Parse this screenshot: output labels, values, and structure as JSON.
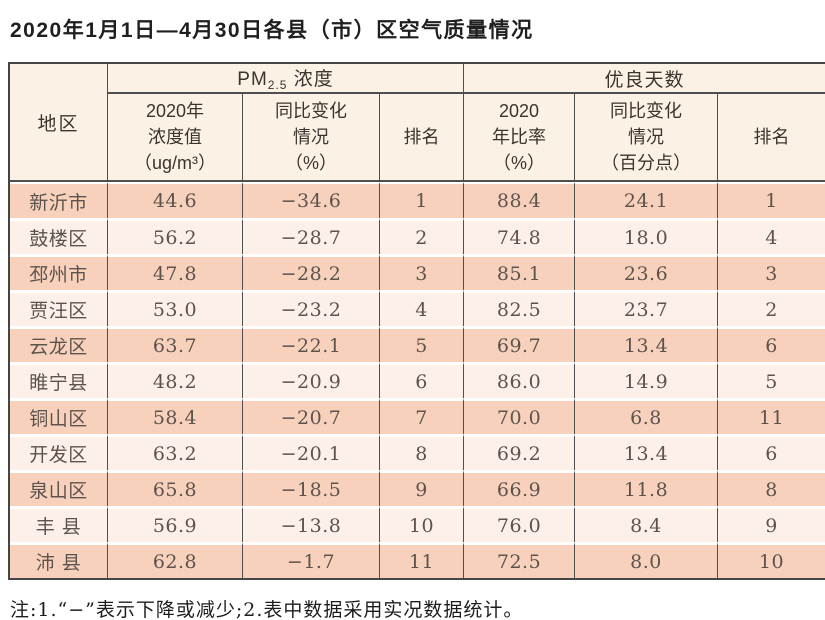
{
  "title": "2020年1月1日—4月30日各县（市）区空气质量情况",
  "colors": {
    "row_salmon": "#f8d1bc",
    "row_light": "#fcf0e9",
    "header_cream": "#fbf1e4",
    "border_dark": "#4f4f4f"
  },
  "table": {
    "region_header": "地区",
    "pm25_group": {
      "prefix": "PM",
      "sub": "2.5",
      "suffix": " 浓度"
    },
    "good_days_group": "优良天数",
    "sub_headers": [
      "2020年\n浓度值\n（ug/m³）",
      "同比变化\n情况\n（%）",
      "排名",
      "2020\n年比率\n（%）",
      "同比变化\n情况\n（百分点）",
      "排名"
    ],
    "rows": [
      [
        "新沂市",
        "44.6",
        "−34.6",
        "1",
        "88.4",
        "24.1",
        "1"
      ],
      [
        "鼓楼区",
        "56.2",
        "−28.7",
        "2",
        "74.8",
        "18.0",
        "4"
      ],
      [
        "邳州市",
        "47.8",
        "−28.2",
        "3",
        "85.1",
        "23.6",
        "3"
      ],
      [
        "贾汪区",
        "53.0",
        "−23.2",
        "4",
        "82.5",
        "23.7",
        "2"
      ],
      [
        "云龙区",
        "63.7",
        "−22.1",
        "5",
        "69.7",
        "13.4",
        "6"
      ],
      [
        "睢宁县",
        "48.2",
        "−20.9",
        "6",
        "86.0",
        "14.9",
        "5"
      ],
      [
        "铜山区",
        "58.4",
        "−20.7",
        "7",
        "70.0",
        "6.8",
        "11"
      ],
      [
        "开发区",
        "63.2",
        "−20.1",
        "8",
        "69.2",
        "13.4",
        "6"
      ],
      [
        "泉山区",
        "65.8",
        "−18.5",
        "9",
        "66.9",
        "11.8",
        "8"
      ],
      [
        "丰 县",
        "56.9",
        "−13.8",
        "10",
        "76.0",
        "8.4",
        "9"
      ],
      [
        "沛 县",
        "62.8",
        "−1.7",
        "11",
        "72.5",
        "8.0",
        "10"
      ]
    ]
  },
  "footnote": "注:1.“−”表示下降或减少;2.表中数据采用实况数据统计。"
}
